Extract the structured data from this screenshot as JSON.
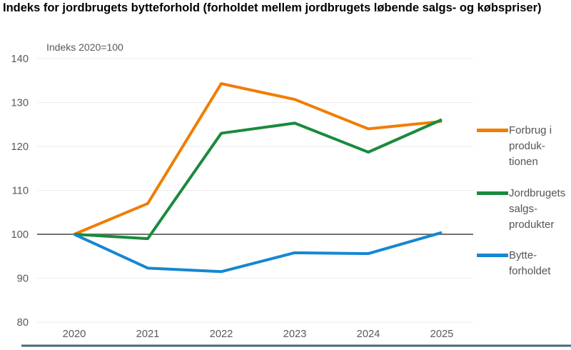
{
  "header": {
    "title": "Indeks for jordbrugets bytteforhold (forholdet mellem jordbrugets løbende salgs- og købspriser)",
    "subtitle": "Indeks 2020=100"
  },
  "legend": {
    "position": "right",
    "items": [
      {
        "name": "Forbrug i produktionen",
        "lines": [
          "Forbrug i",
          "produk-",
          "tionen"
        ],
        "color": "#f07d00"
      },
      {
        "name": "Jordbrugets salgsprodukter",
        "lines": [
          "Jordbrugets",
          "salgs-",
          "produkter"
        ],
        "color": "#1b8a3e"
      },
      {
        "name": "Bytteforholdet",
        "lines": [
          "Bytte-",
          "forholdet"
        ],
        "color": "#1687d0"
      }
    ]
  },
  "chart_data": {
    "type": "line",
    "title": "Indeks for jordbrugets bytteforhold (forholdet mellem jordbrugets løbende salgs- og købspriser)",
    "subtitle": "Indeks 2020=100",
    "xlabel": "",
    "ylabel": "Indeks 2020=100",
    "x": [
      2020,
      2021,
      2022,
      2023,
      2024,
      2025
    ],
    "x_labels": [
      "2020",
      "2021",
      "2022",
      "2023",
      "2024",
      "2025"
    ],
    "yticks": [
      80,
      90,
      100,
      110,
      120,
      130,
      140
    ],
    "ylim": [
      80,
      140
    ],
    "reference_line": 100,
    "grid": "horizontal",
    "legend_position": "right",
    "series": [
      {
        "name": "Forbrug i produktionen",
        "color": "#f07d00",
        "values": [
          100,
          107,
          134.3,
          130.7,
          124,
          125.7
        ]
      },
      {
        "name": "Jordbrugets salgsprodukter",
        "color": "#1b8a3e",
        "values": [
          100,
          99,
          123,
          125.3,
          118.7,
          126.1
        ]
      },
      {
        "name": "Bytteforholdet",
        "color": "#1687d0",
        "values": [
          100,
          92.3,
          91.5,
          95.8,
          95.6,
          100.4
        ]
      }
    ],
    "colors": {
      "grid": "#ececec",
      "reference": "#73736b",
      "axis_text": "#595959",
      "bottom_bar": "#4b6973",
      "bottom_bar_light": "#9db3bc"
    }
  }
}
